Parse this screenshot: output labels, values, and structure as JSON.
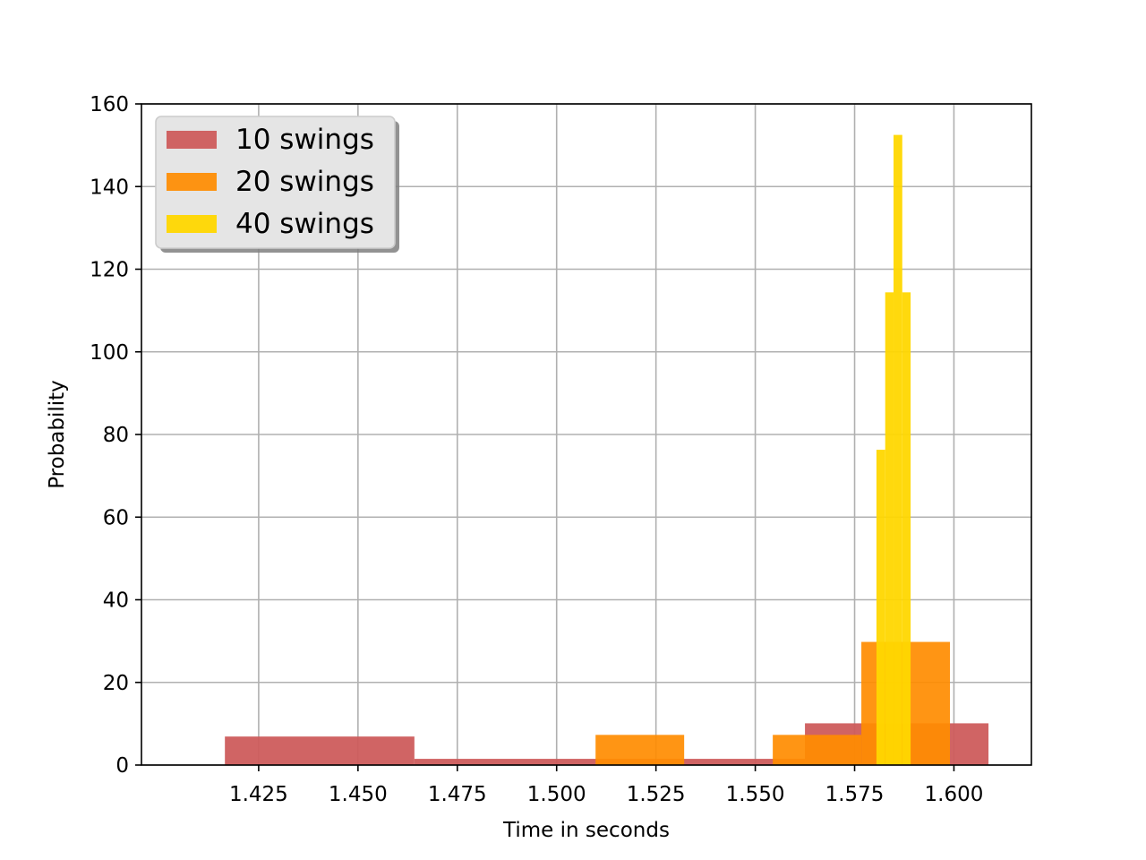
{
  "chart_data": {
    "type": "bar",
    "subtype": "histogram",
    "title": "",
    "xlabel": "Time in seconds",
    "ylabel": "Probability",
    "xlim": [
      1.3955,
      1.6195
    ],
    "ylim": [
      0,
      160
    ],
    "xticks": [
      1.425,
      1.45,
      1.475,
      1.5,
      1.525,
      1.55,
      1.575,
      1.6
    ],
    "xtick_labels": [
      "1.425",
      "1.450",
      "1.475",
      "1.500",
      "1.525",
      "1.550",
      "1.575",
      "1.600"
    ],
    "yticks": [
      0,
      20,
      40,
      60,
      80,
      100,
      120,
      140,
      160
    ],
    "ytick_labels": [
      "0",
      "20",
      "40",
      "60",
      "80",
      "100",
      "120",
      "140",
      "160"
    ],
    "grid": true,
    "legend_position": "top-left",
    "series": [
      {
        "name": "10 swings",
        "color": "#cd5c5c",
        "opacity": 0.95,
        "bins": [
          {
            "x0": 1.4165,
            "x1": 1.4642,
            "value": 6.9
          },
          {
            "x0": 1.4642,
            "x1": 1.5625,
            "value": 1.5
          },
          {
            "x0": 1.5625,
            "x1": 1.6087,
            "value": 10.1
          }
        ]
      },
      {
        "name": "20 swings",
        "color": "#ff8c00",
        "opacity": 0.92,
        "bins": [
          {
            "x0": 1.5098,
            "x1": 1.5321,
            "value": 7.3
          },
          {
            "x0": 1.5544,
            "x1": 1.5767,
            "value": 7.3
          },
          {
            "x0": 1.5767,
            "x1": 1.599,
            "value": 29.8
          }
        ]
      },
      {
        "name": "40 swings",
        "color": "#ffd700",
        "opacity": 0.95,
        "bins": [
          {
            "x0": 1.5805,
            "x1": 1.5827,
            "value": 76.3
          },
          {
            "x0": 1.5827,
            "x1": 1.5848,
            "value": 114.4
          },
          {
            "x0": 1.5848,
            "x1": 1.587,
            "value": 152.5
          },
          {
            "x0": 1.587,
            "x1": 1.5891,
            "value": 114.4
          }
        ]
      }
    ]
  }
}
